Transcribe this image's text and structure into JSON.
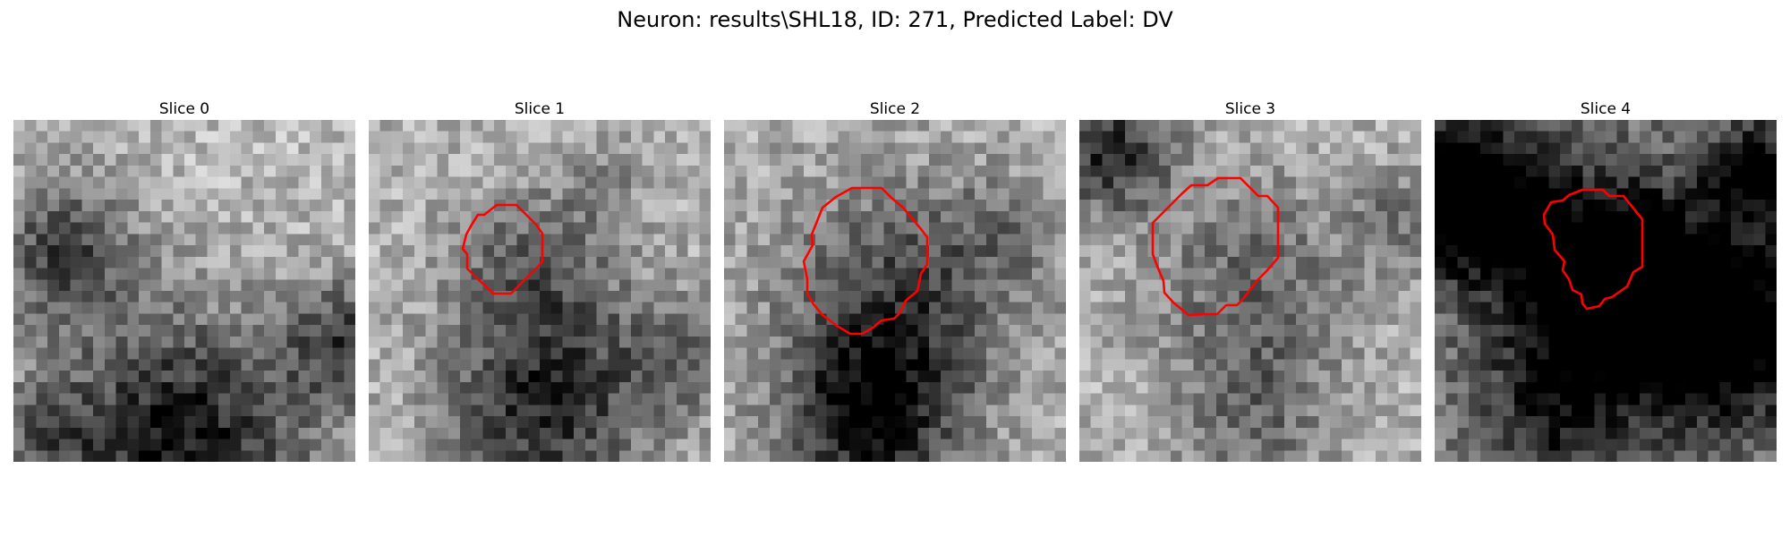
{
  "figure": {
    "title": "Neuron: results\\SHL18, ID: 271, Predicted Label: DV"
  },
  "panels": [
    {
      "title": "Slice 0",
      "has_contour": false
    },
    {
      "title": "Slice 1",
      "has_contour": true
    },
    {
      "title": "Slice 2",
      "has_contour": true
    },
    {
      "title": "Slice 3",
      "has_contour": true
    },
    {
      "title": "Slice 4",
      "has_contour": true
    }
  ],
  "colors": {
    "contour": "#ff0000",
    "background": "#ffffff",
    "colormap": "gray"
  }
}
